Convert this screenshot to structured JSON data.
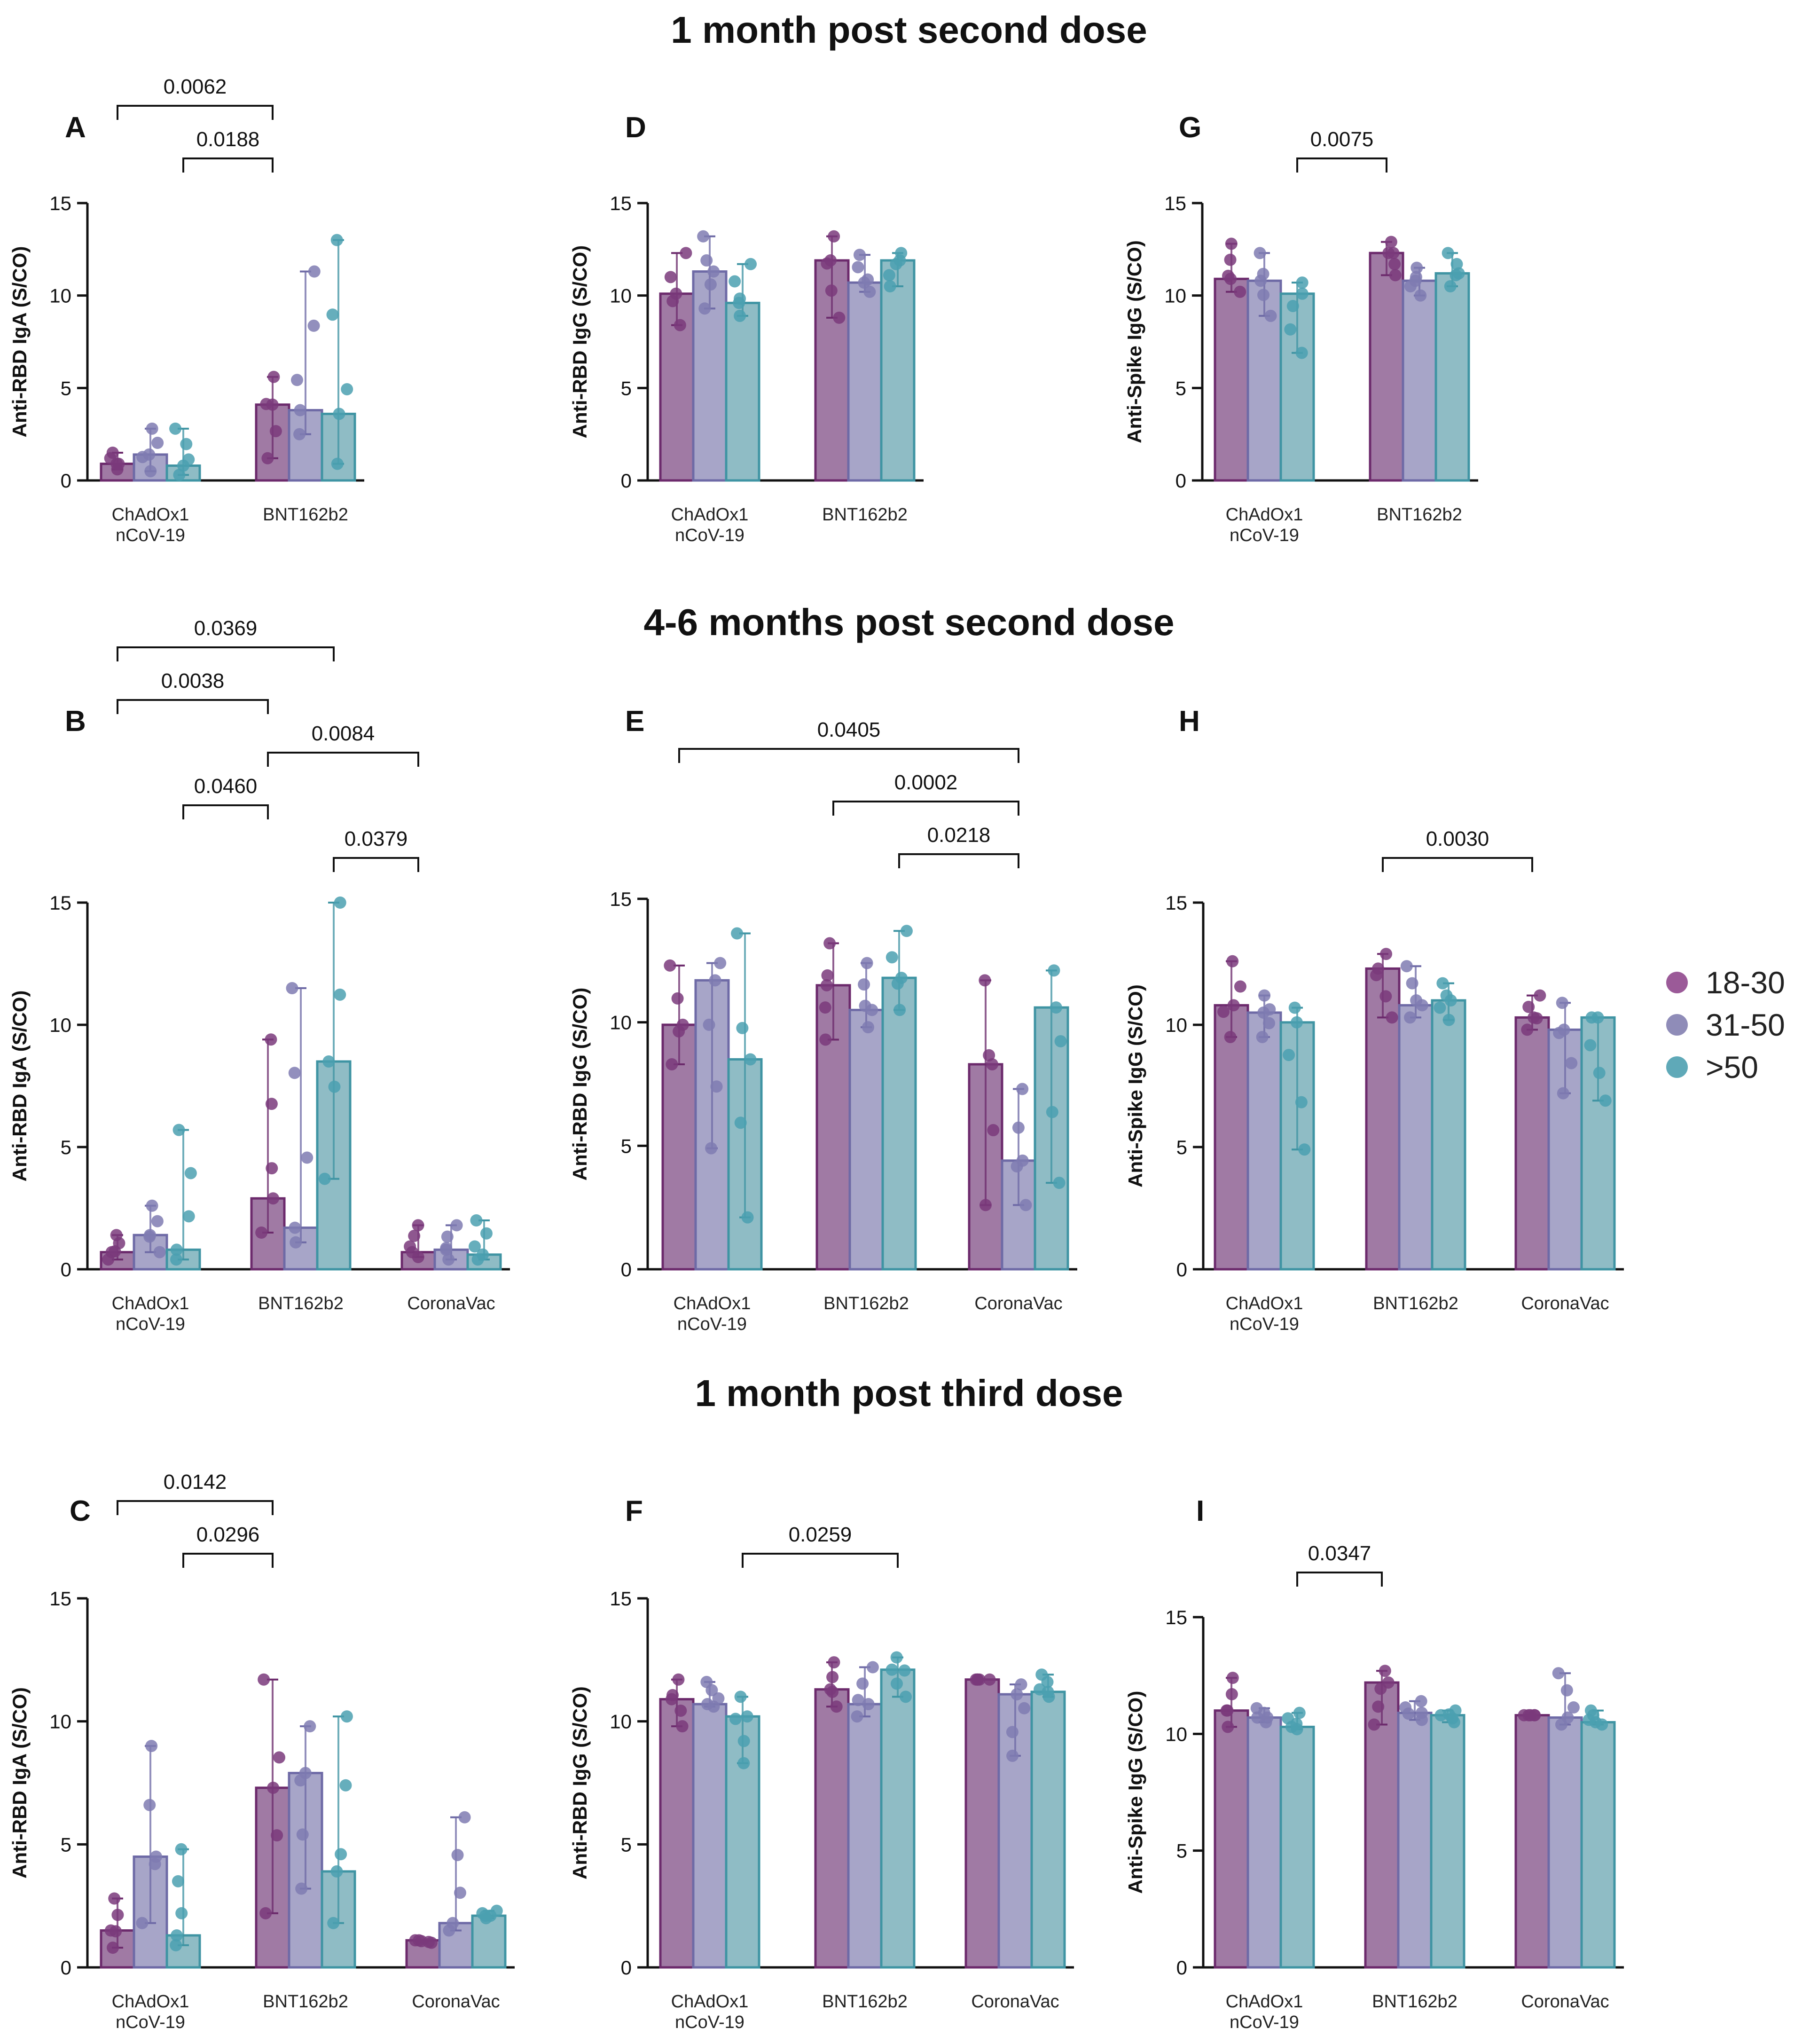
{
  "titles": {
    "row1": "1 month post second dose",
    "row2": "4-6 months post second dose",
    "row3": "1 month post third dose"
  },
  "legend": {
    "items": [
      {
        "label": "18-30",
        "color": "#9b5a98"
      },
      {
        "label": "31-50",
        "color": "#8f8cb8"
      },
      {
        "label": ">50",
        "color": "#5fa9b8"
      }
    ]
  },
  "chart_data": [
    {
      "panel": "A",
      "type": "bar",
      "ylabel": "Anti-RBD IgA (S/CO)",
      "ylim": [
        0,
        15
      ],
      "yticks": [
        "0",
        "5",
        "10",
        "15"
      ],
      "categories": [
        "ChAdOx1 nCoV-19",
        "BNT162b2"
      ],
      "series": [
        {
          "name": "18-30",
          "values": [
            0.9,
            4.1
          ],
          "err_low": [
            0.6,
            1.2
          ],
          "err_high": [
            1.5,
            5.6
          ]
        },
        {
          "name": "31-50",
          "values": [
            1.4,
            3.8
          ],
          "err_low": [
            0.5,
            2.5
          ],
          "err_high": [
            2.8,
            11.3
          ]
        },
        {
          "name": ">50",
          "values": [
            0.8,
            3.6
          ],
          "err_low": [
            0.3,
            0.9
          ],
          "err_high": [
            2.8,
            13.0
          ]
        }
      ],
      "brackets": [
        {
          "label": "0.0062",
          "x1": "ChAdOx1 nCoV-19|18-30",
          "x2": "BNT162b2|18-30"
        },
        {
          "label": "0.0188",
          "x1": "ChAdOx1 nCoV-19|>50",
          "x2": "BNT162b2|18-30"
        }
      ]
    },
    {
      "panel": "D",
      "type": "bar",
      "ylabel": "Anti-RBD IgG (S/CO)",
      "ylim": [
        0,
        15
      ],
      "yticks": [
        "0",
        "5",
        "10",
        "15"
      ],
      "categories": [
        "ChAdOx1 nCoV-19",
        "BNT162b2"
      ],
      "series": [
        {
          "name": "18-30",
          "values": [
            10.1,
            11.9
          ],
          "err_low": [
            8.4,
            8.8
          ],
          "err_high": [
            12.3,
            13.2
          ]
        },
        {
          "name": "31-50",
          "values": [
            11.3,
            10.7
          ],
          "err_low": [
            9.3,
            10.2
          ],
          "err_high": [
            13.2,
            12.2
          ]
        },
        {
          "name": ">50",
          "values": [
            9.6,
            11.9
          ],
          "err_low": [
            8.9,
            10.5
          ],
          "err_high": [
            11.7,
            12.3
          ]
        }
      ],
      "brackets": []
    },
    {
      "panel": "G",
      "type": "bar",
      "ylabel": "Anti-Spike IgG (S/CO)",
      "ylim": [
        0,
        15
      ],
      "yticks": [
        "0",
        "5",
        "10",
        "15"
      ],
      "categories": [
        "ChAdOx1 nCoV-19",
        "BNT162b2"
      ],
      "series": [
        {
          "name": "18-30",
          "values": [
            10.9,
            12.3
          ],
          "err_low": [
            10.2,
            11.1
          ],
          "err_high": [
            12.8,
            12.9
          ]
        },
        {
          "name": "31-50",
          "values": [
            10.8,
            10.8
          ],
          "err_low": [
            8.9,
            10.0
          ],
          "err_high": [
            12.3,
            11.5
          ]
        },
        {
          "name": ">50",
          "values": [
            10.1,
            11.2
          ],
          "err_low": [
            6.9,
            10.5
          ],
          "err_high": [
            10.7,
            12.3
          ]
        }
      ],
      "brackets": [
        {
          "label": "0.0075",
          "x1": "ChAdOx1 nCoV-19|>50",
          "x2": "BNT162b2|18-30"
        }
      ]
    },
    {
      "panel": "B",
      "type": "bar",
      "ylabel": "Anti-RBD IgA (S/CO)",
      "ylim": [
        0,
        15
      ],
      "yticks": [
        "0",
        "5",
        "10",
        "15"
      ],
      "categories": [
        "ChAdOx1 nCoV-19",
        "BNT162b2",
        "CoronaVac"
      ],
      "series": [
        {
          "name": "18-30",
          "values": [
            0.7,
            2.9,
            0.7
          ],
          "err_low": [
            0.4,
            1.5,
            0.5
          ],
          "err_high": [
            1.4,
            9.4,
            1.8
          ]
        },
        {
          "name": "31-50",
          "values": [
            1.4,
            1.7,
            0.8
          ],
          "err_low": [
            0.7,
            1.1,
            0.4
          ],
          "err_high": [
            2.6,
            11.5,
            1.8
          ]
        },
        {
          "name": ">50",
          "values": [
            0.8,
            8.5,
            0.6
          ],
          "err_low": [
            0.4,
            3.7,
            0.4
          ],
          "err_high": [
            5.7,
            15.0,
            2.0
          ]
        }
      ],
      "brackets": [
        {
          "label": "0.0369",
          "x1": "ChAdOx1 nCoV-19|18-30",
          "x2": "BNT162b2|>50"
        },
        {
          "label": "0.0038",
          "x1": "ChAdOx1 nCoV-19|18-30",
          "x2": "BNT162b2|18-30"
        },
        {
          "label": "0.0084",
          "x1": "BNT162b2|18-30",
          "x2": "CoronaVac|18-30"
        },
        {
          "label": "0.0460",
          "x1": "ChAdOx1 nCoV-19|>50",
          "x2": "BNT162b2|18-30"
        },
        {
          "label": "0.0379",
          "x1": "BNT162b2|>50",
          "x2": "CoronaVac|18-30"
        }
      ]
    },
    {
      "panel": "E",
      "type": "bar",
      "ylabel": "Anti-RBD IgG (S/CO)",
      "ylim": [
        0,
        15
      ],
      "yticks": [
        "0",
        "5",
        "10",
        "15"
      ],
      "categories": [
        "ChAdOx1 nCoV-19",
        "BNT162b2",
        "CoronaVac"
      ],
      "series": [
        {
          "name": "18-30",
          "values": [
            9.9,
            11.5,
            8.3
          ],
          "err_low": [
            8.3,
            9.3,
            2.6
          ],
          "err_high": [
            12.3,
            13.2,
            11.7
          ]
        },
        {
          "name": "31-50",
          "values": [
            11.7,
            10.5,
            4.4
          ],
          "err_low": [
            4.9,
            9.8,
            2.6
          ],
          "err_high": [
            12.4,
            12.4,
            7.3
          ]
        },
        {
          "name": ">50",
          "values": [
            8.5,
            11.8,
            10.6
          ],
          "err_low": [
            2.1,
            10.5,
            3.5
          ],
          "err_high": [
            13.6,
            13.7,
            12.1
          ]
        }
      ],
      "brackets": [
        {
          "label": "0.0405",
          "x1": "ChAdOx1 nCoV-19|18-30",
          "x2": "CoronaVac|31-50"
        },
        {
          "label": "0.0002",
          "x1": "BNT162b2|18-30",
          "x2": "CoronaVac|31-50"
        },
        {
          "label": "0.0218",
          "x1": "BNT162b2|>50",
          "x2": "CoronaVac|31-50"
        }
      ]
    },
    {
      "panel": "H",
      "type": "bar",
      "ylabel": "Anti-Spike IgG (S/CO)",
      "ylim": [
        0,
        15
      ],
      "yticks": [
        "0",
        "5",
        "10",
        "15"
      ],
      "categories": [
        "ChAdOx1 nCoV-19",
        "BNT162b2",
        "CoronaVac"
      ],
      "series": [
        {
          "name": "18-30",
          "values": [
            10.8,
            12.3,
            10.3
          ],
          "err_low": [
            9.5,
            10.3,
            9.8
          ],
          "err_high": [
            12.6,
            12.9,
            11.2
          ]
        },
        {
          "name": "31-50",
          "values": [
            10.5,
            10.8,
            9.8
          ],
          "err_low": [
            9.5,
            10.3,
            7.2
          ],
          "err_high": [
            11.2,
            12.4,
            10.9
          ]
        },
        {
          "name": ">50",
          "values": [
            10.1,
            11.0,
            10.3
          ],
          "err_low": [
            4.9,
            10.2,
            6.9
          ],
          "err_high": [
            10.7,
            11.7,
            10.3
          ]
        }
      ],
      "brackets": [
        {
          "label": "0.0030",
          "x1": "BNT162b2|18-30",
          "x2": "CoronaVac|18-30"
        }
      ]
    },
    {
      "panel": "C",
      "type": "bar",
      "ylabel": "Anti-RBD IgA (S/CO)",
      "ylim": [
        0,
        15
      ],
      "yticks": [
        "0",
        "5",
        "10",
        "15"
      ],
      "categories": [
        "ChAdOx1 nCoV-19",
        "BNT162b2",
        "CoronaVac"
      ],
      "series": [
        {
          "name": "18-30",
          "values": [
            1.5,
            7.3,
            1.1
          ],
          "err_low": [
            0.8,
            2.2,
            1.0
          ],
          "err_high": [
            2.8,
            11.7,
            1.1
          ]
        },
        {
          "name": "31-50",
          "values": [
            4.5,
            7.9,
            1.8
          ],
          "err_low": [
            1.8,
            3.2,
            1.5
          ],
          "err_high": [
            9.0,
            9.8,
            6.1
          ]
        },
        {
          "name": ">50",
          "values": [
            1.3,
            3.9,
            2.1
          ],
          "err_low": [
            0.9,
            1.8,
            2.0
          ],
          "err_high": [
            4.8,
            10.2,
            2.3
          ]
        }
      ],
      "brackets": [
        {
          "label": "0.0142",
          "x1": "ChAdOx1 nCoV-19|18-30",
          "x2": "BNT162b2|18-30"
        },
        {
          "label": "0.0296",
          "x1": "ChAdOx1 nCoV-19|>50",
          "x2": "BNT162b2|18-30"
        }
      ]
    },
    {
      "panel": "F",
      "type": "bar",
      "ylabel": "Anti-RBD IgG (S/CO)",
      "ylim": [
        0,
        15
      ],
      "yticks": [
        "0",
        "5",
        "10",
        "15"
      ],
      "categories": [
        "ChAdOx1 nCoV-19",
        "BNT162b2",
        "CoronaVac"
      ],
      "series": [
        {
          "name": "18-30",
          "values": [
            10.9,
            11.3,
            11.7
          ],
          "err_low": [
            9.8,
            10.6,
            11.7
          ],
          "err_high": [
            11.7,
            12.4,
            11.7
          ]
        },
        {
          "name": "31-50",
          "values": [
            10.7,
            10.7,
            11.1
          ],
          "err_low": [
            10.6,
            10.2,
            8.6
          ],
          "err_high": [
            11.6,
            12.2,
            11.5
          ]
        },
        {
          "name": ">50",
          "values": [
            10.2,
            12.1,
            11.2
          ],
          "err_low": [
            8.3,
            11.0,
            11.0
          ],
          "err_high": [
            11.0,
            12.6,
            11.9
          ]
        }
      ],
      "brackets": [
        {
          "label": "0.0259",
          "x1": "ChAdOx1 nCoV-19|>50",
          "x2": "BNT162b2|>50"
        }
      ]
    },
    {
      "panel": "I",
      "type": "bar",
      "ylabel": "Anti-Spike IgG (S/CO)",
      "ylim": [
        0,
        15
      ],
      "yticks": [
        "0",
        "5",
        "10",
        "15"
      ],
      "categories": [
        "ChAdOx1 nCoV-19",
        "BNT162b2",
        "CoronaVac"
      ],
      "series": [
        {
          "name": "18-30",
          "values": [
            11.0,
            12.2,
            10.8
          ],
          "err_low": [
            10.3,
            10.4,
            10.8
          ],
          "err_high": [
            12.4,
            12.7,
            10.8
          ]
        },
        {
          "name": "31-50",
          "values": [
            10.7,
            10.9,
            10.7
          ],
          "err_low": [
            10.5,
            10.6,
            10.4
          ],
          "err_high": [
            11.1,
            11.4,
            12.6
          ]
        },
        {
          "name": ">50",
          "values": [
            10.3,
            10.8,
            10.5
          ],
          "err_low": [
            10.2,
            10.5,
            10.4
          ],
          "err_high": [
            10.9,
            11.0,
            11.0
          ]
        }
      ],
      "brackets": [
        {
          "label": "0.0347",
          "x1": "ChAdOx1 nCoV-19|>50",
          "x2": "BNT162b2|18-30"
        }
      ]
    }
  ]
}
